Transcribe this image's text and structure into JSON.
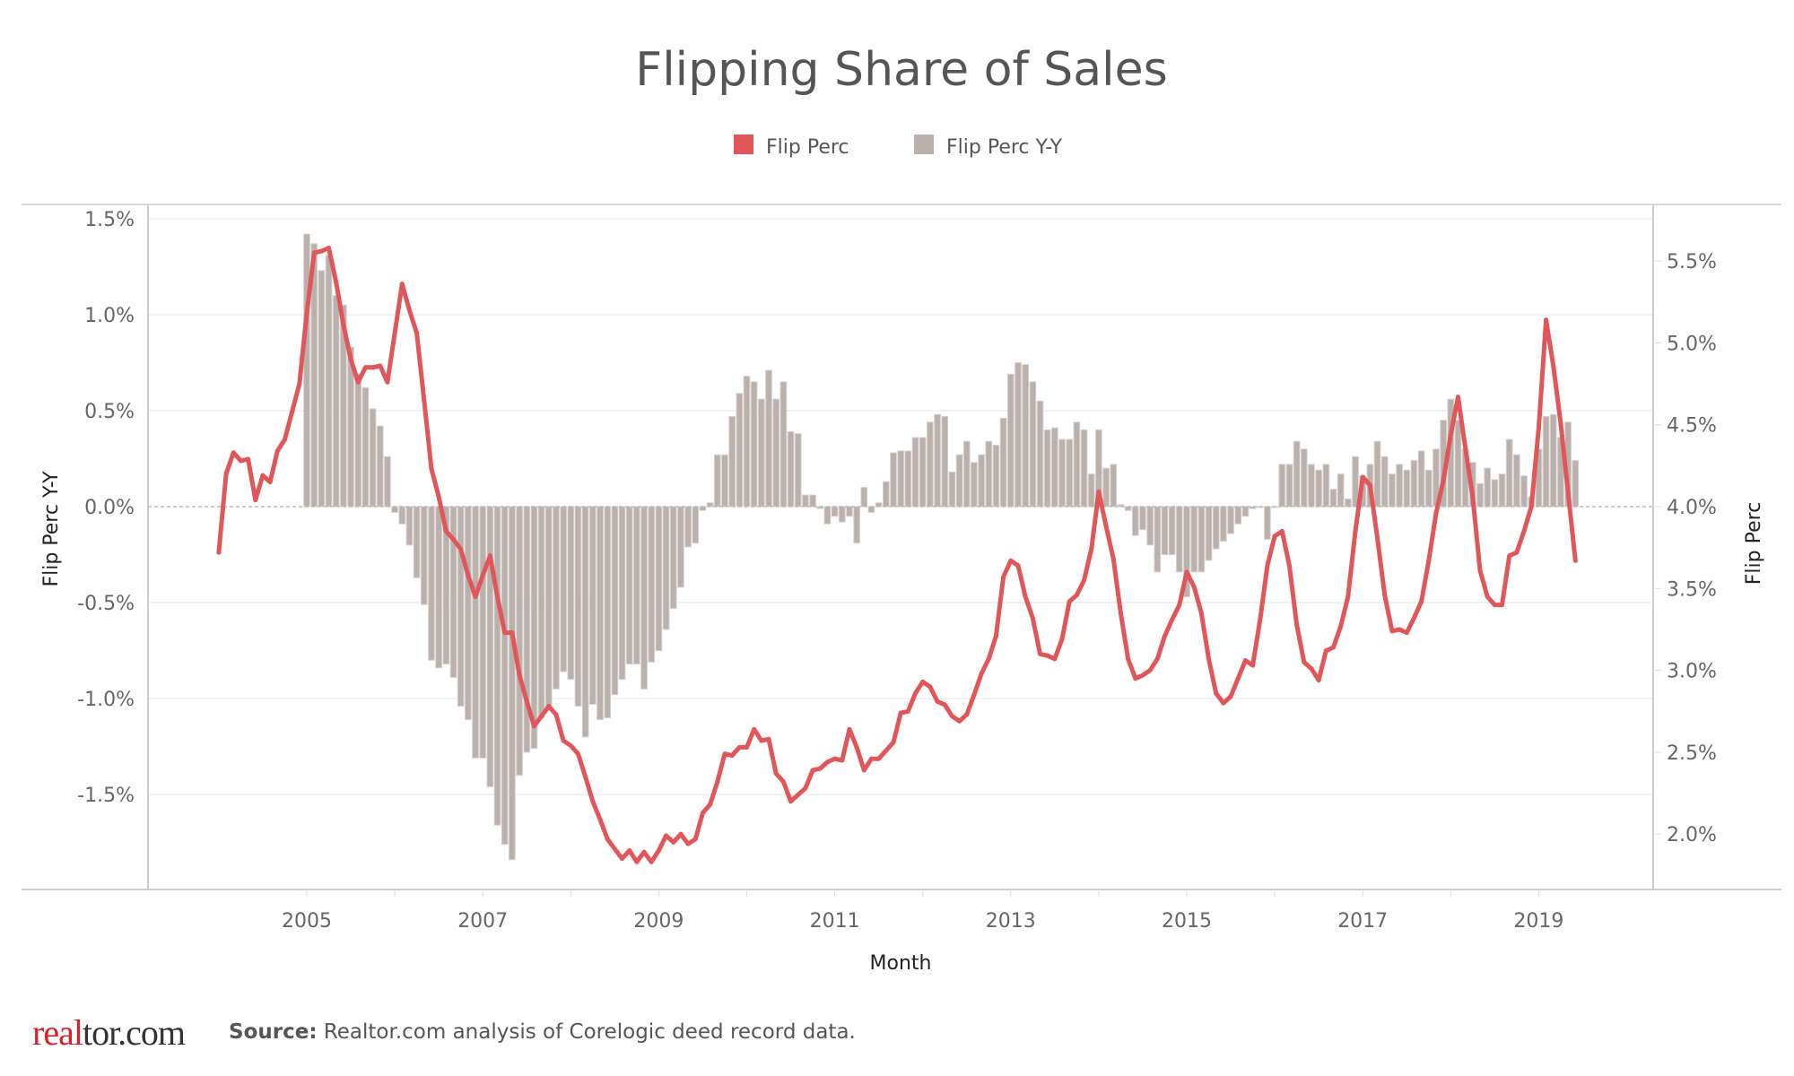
{
  "chart_data": {
    "type": "bar+line",
    "title": "Flipping Share of Sales",
    "xlabel": "Month",
    "x_ticks": [
      "2005",
      "2007",
      "2009",
      "2011",
      "2013",
      "2015",
      "2017",
      "2019"
    ],
    "legend": {
      "position": "top",
      "entries": [
        {
          "name": "Flip Perc",
          "color": "#e15759"
        },
        {
          "name": "Flip Perc Y-Y",
          "color": "#bab0ac"
        }
      ]
    },
    "y_left": {
      "label": "Flip Perc Y-Y",
      "range": [
        -1.9,
        1.6
      ],
      "ticks": [
        "1.5%",
        "1.0%",
        "0.5%",
        "0.0%",
        "-0.5%",
        "-1.0%",
        "-1.5%"
      ]
    },
    "y_right": {
      "label": "Flip Perc",
      "range": [
        1.6,
        5.7
      ],
      "ticks": [
        "5.5%",
        "5.0%",
        "4.5%",
        "4.0%",
        "3.5%",
        "3.0%",
        "2.5%",
        "2.0%"
      ]
    },
    "grid": true,
    "series": [
      {
        "name": "Flip Perc",
        "type": "line",
        "axis": "right",
        "unit": "%",
        "color": "#e15759",
        "values_by_year": {
          "2004": [
            3.72,
            4.2,
            4.33,
            4.28,
            4.29,
            4.04,
            4.19,
            4.15,
            4.34,
            4.41,
            4.58,
            4.75
          ],
          "2005": [
            5.18,
            5.55,
            5.56,
            5.58,
            5.37,
            5.11,
            4.9,
            4.76,
            4.85,
            4.85,
            4.86,
            4.76
          ],
          "2006": [
            5.06,
            5.36,
            5.2,
            5.06,
            4.65,
            4.23,
            4.06,
            3.85,
            3.8,
            3.74,
            3.58,
            3.45
          ],
          "2007": [
            3.58,
            3.7,
            3.45,
            3.23,
            3.23,
            2.97,
            2.81,
            2.66,
            2.72,
            2.78,
            2.73,
            2.57
          ],
          "2008": [
            2.54,
            2.49,
            2.35,
            2.2,
            2.09,
            1.97,
            1.91,
            1.85,
            1.9,
            1.83,
            1.89,
            1.83
          ],
          "2009": [
            1.9,
            1.99,
            1.95,
            2.0,
            1.94,
            1.97,
            2.13,
            2.18,
            2.32,
            2.49,
            2.48,
            2.53
          ],
          "2010": [
            2.53,
            2.64,
            2.57,
            2.58,
            2.37,
            2.32,
            2.2,
            2.24,
            2.28,
            2.39,
            2.4,
            2.44
          ],
          "2011": [
            2.46,
            2.45,
            2.64,
            2.53,
            2.39,
            2.46,
            2.46,
            2.51,
            2.56,
            2.74,
            2.75,
            2.86
          ],
          "2012": [
            2.93,
            2.9,
            2.81,
            2.79,
            2.72,
            2.69,
            2.73,
            2.85,
            2.98,
            3.07,
            3.21,
            3.57
          ],
          "2013": [
            3.67,
            3.64,
            3.45,
            3.32,
            3.1,
            3.09,
            3.07,
            3.19,
            3.42,
            3.46,
            3.55,
            3.74
          ],
          "2014": [
            4.09,
            3.88,
            3.68,
            3.35,
            3.07,
            2.95,
            2.97,
            3.0,
            3.07,
            3.21,
            3.31,
            3.4
          ],
          "2015": [
            3.6,
            3.51,
            3.35,
            3.07,
            2.86,
            2.8,
            2.84,
            2.95,
            3.06,
            3.03,
            3.31,
            3.64
          ],
          "2016": [
            3.82,
            3.85,
            3.64,
            3.28,
            3.05,
            3.01,
            2.94,
            3.12,
            3.14,
            3.27,
            3.45,
            3.85
          ],
          "2017": [
            4.18,
            4.13,
            3.81,
            3.46,
            3.24,
            3.25,
            3.23,
            3.32,
            3.42,
            3.67,
            3.96,
            4.16
          ],
          "2018": [
            4.44,
            4.67,
            4.36,
            4.06,
            3.61,
            3.45,
            3.4,
            3.4,
            3.7,
            3.72,
            3.85,
            4.0
          ],
          "2019": [
            4.48,
            5.14,
            4.86,
            4.51,
            4.09,
            3.67
          ]
        }
      },
      {
        "name": "Flip Perc Y-Y",
        "type": "bar",
        "axis": "left",
        "unit": "%",
        "color": "#bab0ac",
        "values_by_year": {
          "2005": [
            1.42,
            1.37,
            1.23,
            1.31,
            1.1,
            1.05,
            0.83,
            0.69,
            0.62,
            0.51,
            0.42,
            0.26
          ],
          "2006": [
            -0.03,
            -0.09,
            -0.2,
            -0.37,
            -0.51,
            -0.8,
            -0.84,
            -0.82,
            -0.89,
            -1.04,
            -1.11,
            -1.31
          ],
          "2007": [
            -1.31,
            -1.46,
            -1.66,
            -1.76,
            -1.84,
            -1.4,
            -1.28,
            -1.26,
            -1.1,
            -1.06,
            -0.95,
            -0.86
          ],
          "2008": [
            -0.9,
            -1.04,
            -1.2,
            -1.03,
            -1.11,
            -1.1,
            -0.98,
            -0.9,
            -0.82,
            -0.82,
            -0.95,
            -0.81
          ],
          "2009": [
            -0.75,
            -0.64,
            -0.53,
            -0.42,
            -0.21,
            -0.19,
            -0.02,
            0.02,
            0.27,
            0.27,
            0.47,
            0.59
          ],
          "2010": [
            0.68,
            0.65,
            0.56,
            0.71,
            0.56,
            0.65,
            0.39,
            0.38,
            0.06,
            0.06,
            -0.01,
            -0.09
          ],
          "2011": [
            -0.05,
            -0.08,
            -0.05,
            -0.19,
            0.1,
            -0.03,
            0.02,
            0.13,
            0.28,
            0.29,
            0.29,
            0.36
          ],
          "2012": [
            0.36,
            0.44,
            0.48,
            0.47,
            0.18,
            0.27,
            0.34,
            0.23,
            0.27,
            0.34,
            0.32,
            0.46
          ],
          "2013": [
            0.69,
            0.75,
            0.74,
            0.65,
            0.55,
            0.4,
            0.41,
            0.35,
            0.35,
            0.44,
            0.4,
            0.17
          ],
          "2014": [
            0.4,
            0.2,
            0.22,
            0.01,
            -0.02,
            -0.15,
            -0.12,
            -0.2,
            -0.34,
            -0.25,
            -0.25,
            -0.34
          ],
          "2015": [
            -0.47,
            -0.34,
            -0.34,
            -0.28,
            -0.22,
            -0.18,
            -0.14,
            -0.09,
            -0.05,
            -0.01,
            0.0,
            -0.17
          ],
          "2016": [
            0.0,
            0.22,
            0.22,
            0.34,
            0.3,
            0.22,
            0.19,
            0.22,
            0.09,
            0.17,
            0.04,
            0.26
          ],
          "2017": [
            0.16,
            0.22,
            0.34,
            0.26,
            0.17,
            0.22,
            0.19,
            0.24,
            0.29,
            0.19,
            0.3,
            0.45
          ],
          "2018": [
            0.56,
            0.45,
            0.3,
            0.23,
            0.12,
            0.2,
            0.14,
            0.17,
            0.35,
            0.27,
            0.16,
            0.05
          ],
          "2019": [
            0.3,
            0.47,
            0.48,
            0.36,
            0.44,
            0.24
          ]
        }
      }
    ]
  },
  "footer": {
    "source_label": "Source:",
    "source_text": "Realtor.com analysis of Corelogic deed record data.",
    "logo_text": "realtor.com"
  }
}
